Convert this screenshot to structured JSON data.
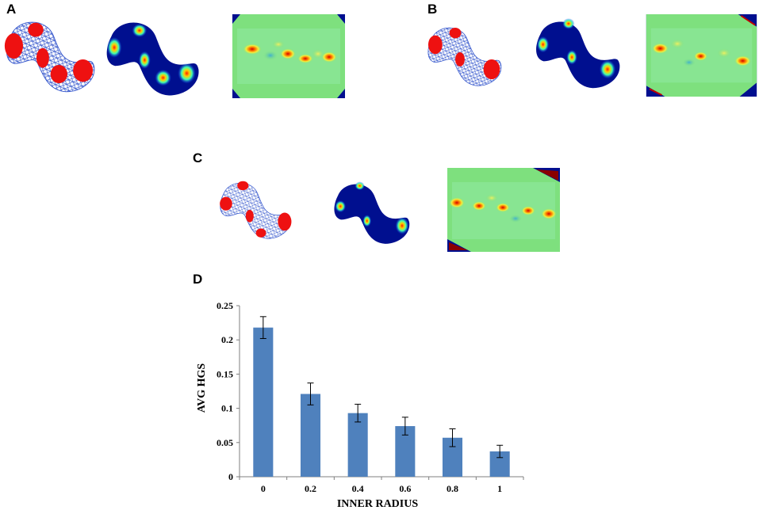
{
  "panels": {
    "a": {
      "letter": "A"
    },
    "b": {
      "letter": "B"
    },
    "c": {
      "letter": "C"
    },
    "d": {
      "letter": "D"
    }
  },
  "colors": {
    "trajectory": "#3355cc",
    "spike": "#ee1111",
    "map_background": "#000f8f",
    "autocorr_background": "#7ee07e",
    "bar": "#4f81bd"
  },
  "chart_data": {
    "type": "bar",
    "xlabel": "INNER RADIUS",
    "ylabel": "AVG HGS",
    "categories": [
      "0",
      "0.2",
      "0.4",
      "0.6",
      "0.8",
      "1"
    ],
    "values": [
      0.218,
      0.121,
      0.093,
      0.074,
      0.057,
      0.037
    ],
    "errors": [
      0.016,
      0.016,
      0.013,
      0.013,
      0.013,
      0.009
    ],
    "ylim": [
      0,
      0.25
    ],
    "yticks": [
      "0",
      "0.05",
      "0.1",
      "0.15",
      "0.2",
      "0.25"
    ],
    "grid": false,
    "legend": "none"
  }
}
